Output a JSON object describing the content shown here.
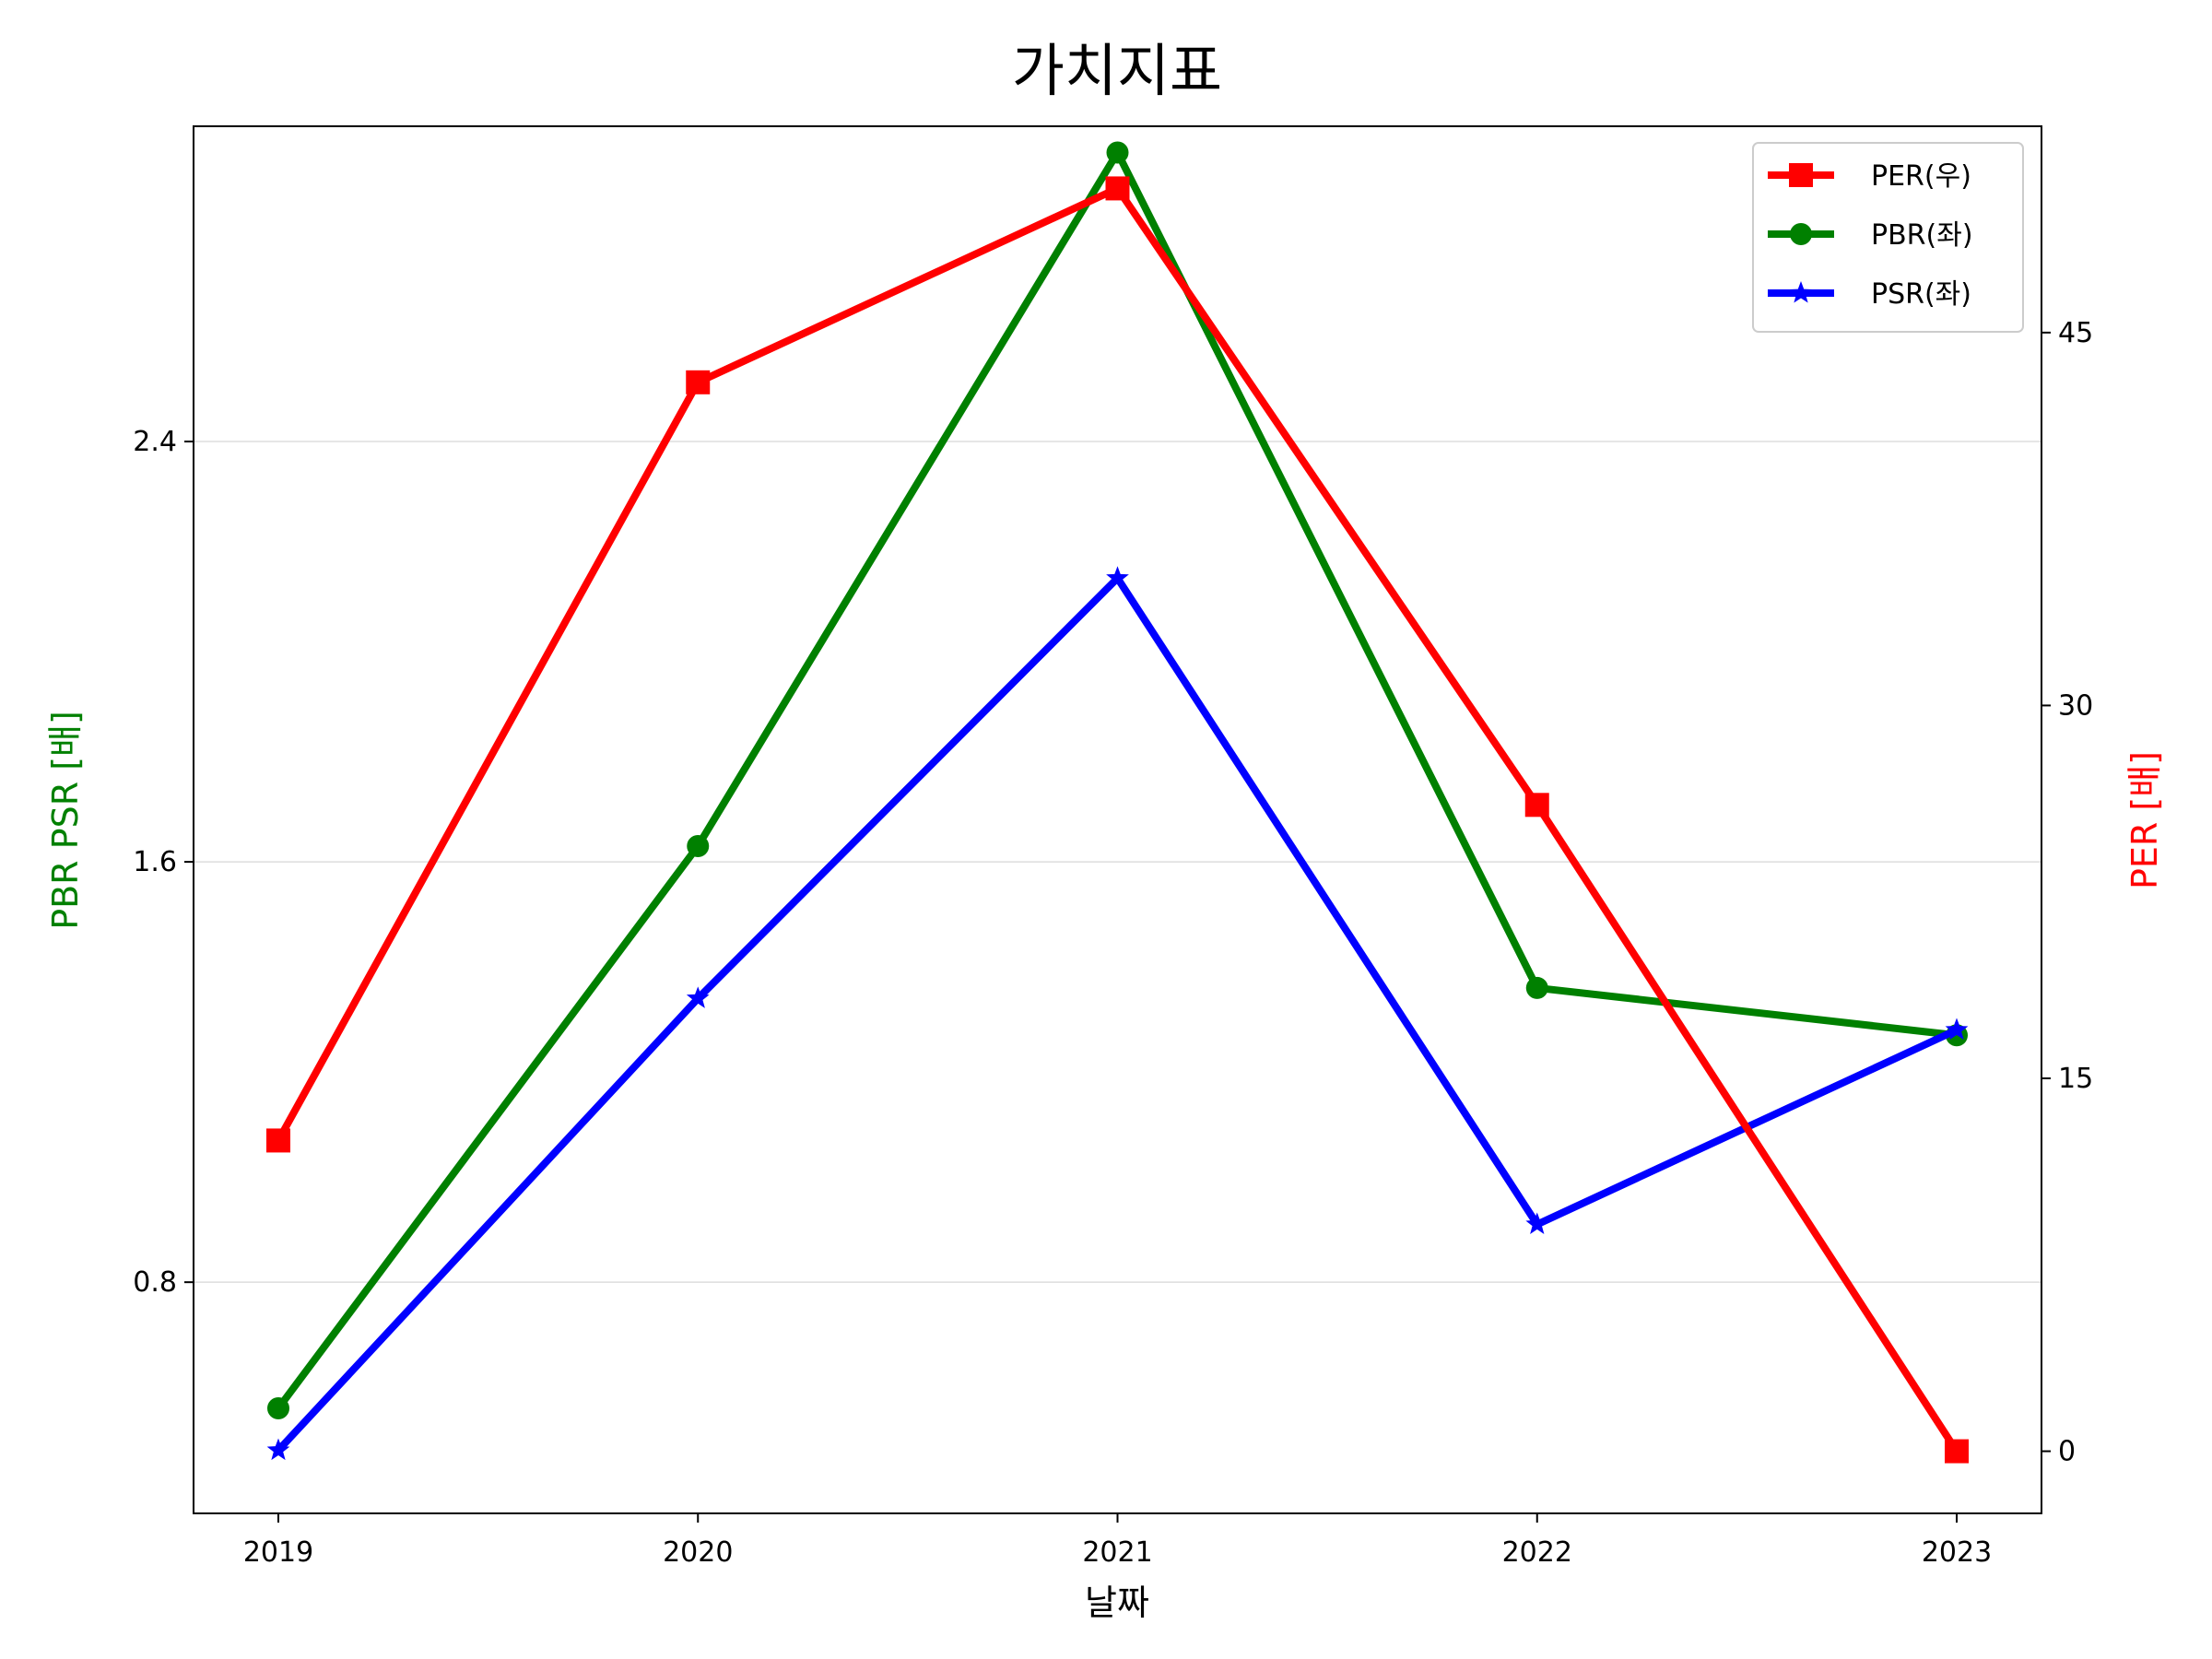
{
  "chart_data": {
    "type": "line",
    "title": "가치지표",
    "xlabel": "날짜",
    "ylabel_left": "PBR PSR [배]",
    "ylabel_right": "PER [배]",
    "categories": [
      "2019",
      "2020",
      "2021",
      "2022",
      "2023"
    ],
    "ylim_left": [
      0.36,
      3.0
    ],
    "yticks_left": [
      "0.8",
      "1.6",
      "2.4"
    ],
    "ylim_right": [
      -2.5,
      53.3
    ],
    "yticks_right": [
      "0",
      "15",
      "30",
      "45"
    ],
    "grid": "horizontal (left axis)",
    "legend_position": "upper-right",
    "series": [
      {
        "name": "PER(우)",
        "axis": "right",
        "color": "#ff0000",
        "marker": "square",
        "values": [
          12.5,
          43.0,
          50.8,
          26.0,
          0.0
        ]
      },
      {
        "name": "PBR(좌)",
        "axis": "left",
        "color": "#008000",
        "marker": "circle",
        "values": [
          0.56,
          1.63,
          2.95,
          1.36,
          1.27
        ]
      },
      {
        "name": "PSR(좌)",
        "axis": "left",
        "color": "#0000ff",
        "marker": "star",
        "values": [
          0.48,
          1.34,
          2.14,
          0.91,
          1.28
        ]
      }
    ]
  }
}
